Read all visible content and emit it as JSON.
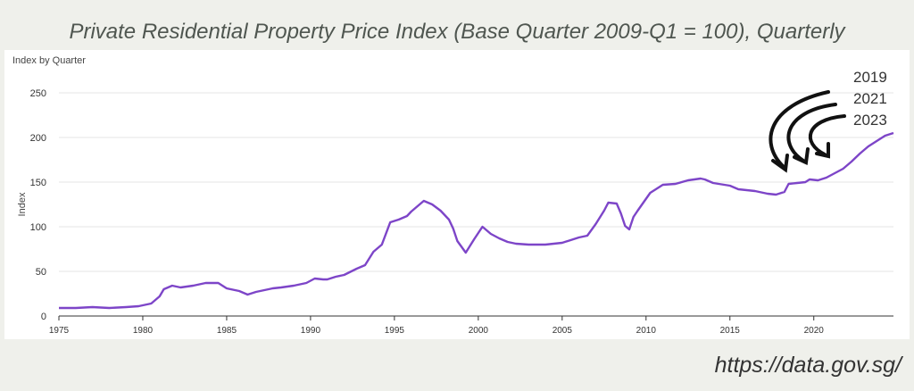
{
  "title": "Private Residential Property Price Index (Base Quarter 2009-Q1 = 100), Quarterly",
  "source": "https://data.gov.sg/",
  "annotations": [
    "2019",
    "2021",
    "2023"
  ],
  "chart_data": {
    "type": "line",
    "subtitle": "Index by Quarter",
    "ylabel": "Index",
    "xlabel": "",
    "xlim": [
      1975,
      2024.75
    ],
    "ylim": [
      0,
      250
    ],
    "x_ticks": [
      "1975",
      "1980",
      "1985",
      "1990",
      "1995",
      "2000",
      "2005",
      "2010",
      "2015",
      "2020"
    ],
    "y_ticks": [
      "0",
      "50",
      "100",
      "150",
      "200",
      "250"
    ],
    "grid": true,
    "legend": "none",
    "colors": {
      "line": "#7d45c8",
      "grid": "#e4e4e4",
      "axis": "#333333"
    },
    "series": [
      {
        "x": [
          1975,
          1976,
          1977,
          1978,
          1979,
          1979.75,
          1980.5,
          1981,
          1981.25,
          1981.75,
          1982.25,
          1983,
          1983.75,
          1984.5,
          1985,
          1985.75,
          1986.25,
          1986.75,
          1987.25,
          1987.75,
          1988.25,
          1989,
          1989.75,
          1990.25,
          1990.75,
          1991,
          1991.5,
          1992,
          1992.75,
          1993.25,
          1993.75,
          1994.25,
          1994.75,
          1995.25,
          1995.75,
          1996,
          1996.25,
          1996.75,
          1997.25,
          1997.75,
          1998.25,
          1998.5,
          1998.75,
          1999.25,
          1999.75,
          2000.25,
          2000.75,
          2001.25,
          2001.75,
          2002.25,
          2003,
          2004,
          2005,
          2006,
          2006.5,
          2007,
          2007.5,
          2007.75,
          2008.25,
          2008.5,
          2008.75,
          2009,
          2009.25,
          2009.5,
          2010.25,
          2011,
          2011.75,
          2012.5,
          2013.25,
          2013.5,
          2014,
          2015,
          2015.5,
          2016.5,
          2017.25,
          2017.75,
          2018.25,
          2018.5,
          2019,
          2019.5,
          2019.75,
          2020.25,
          2020.75,
          2021.25,
          2021.75,
          2022.25,
          2022.75,
          2023.25,
          2023.75,
          2024.25,
          2024.75
        ],
        "values": [
          9,
          9,
          10,
          9,
          10,
          11,
          14,
          22,
          30,
          34,
          32,
          34,
          37,
          37,
          31,
          28,
          24,
          27,
          29,
          31,
          32,
          34,
          37,
          42,
          41,
          41,
          44,
          46,
          53,
          57,
          72,
          80,
          105,
          108,
          112,
          117,
          121,
          129,
          125,
          118,
          108,
          98,
          84,
          71,
          86,
          100,
          92,
          87,
          83,
          81,
          80,
          80,
          82,
          88,
          90,
          103,
          118,
          127,
          126,
          115,
          101,
          97,
          111,
          118,
          138,
          147,
          148,
          152,
          154,
          153,
          149,
          146,
          142,
          140,
          137,
          136,
          139,
          148,
          149,
          150,
          153,
          152,
          155,
          160,
          165,
          173,
          182,
          190,
          196,
          202,
          205
        ]
      }
    ]
  }
}
